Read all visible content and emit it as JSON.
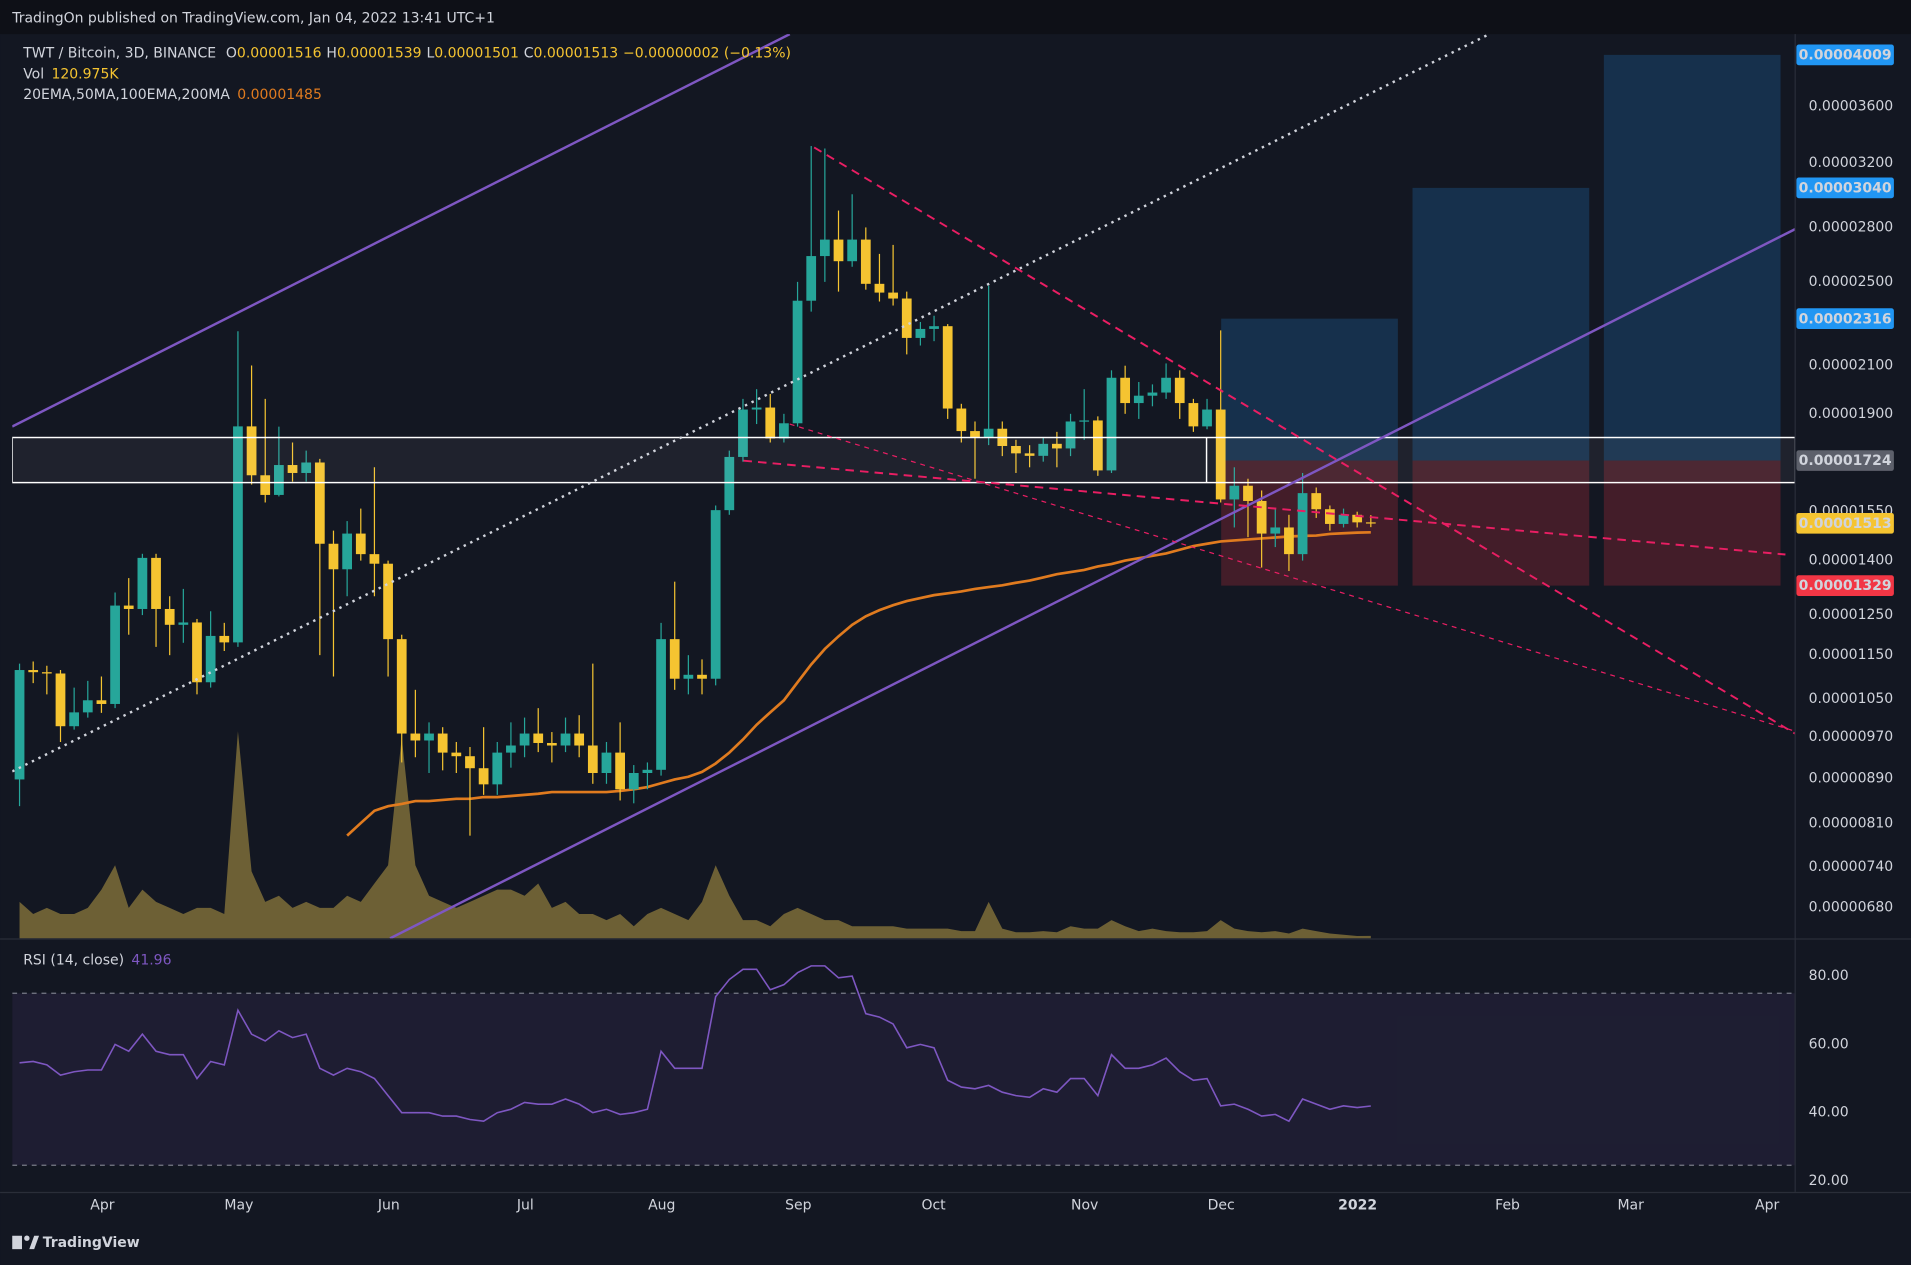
{
  "header": {
    "publisher": "TradingOn published on TradingView.com, Jan 04, 2022 13:41 UTC+1"
  },
  "chart_data": {
    "type": "candlestick",
    "title": "TWT / Bitcoin, 3D, BINANCE",
    "ohlc_letters": [
      "O",
      "H",
      "L",
      "C"
    ],
    "change": "−0.00000002 (−0.13%)",
    "log_scale": true,
    "grid": false,
    "ylim": [
      6.38e-06,
      4.186e-05
    ],
    "yticks": [
      {
        "value": 3.6e-05,
        "label": "0.00003600"
      },
      {
        "value": 3.2e-05,
        "label": "0.00003200"
      },
      {
        "value": 2.8e-05,
        "label": "0.00002800"
      },
      {
        "value": 2.5e-05,
        "label": "0.00002500"
      },
      {
        "value": 2.1e-05,
        "label": "0.00002100"
      },
      {
        "value": 1.9e-05,
        "label": "0.00001900"
      },
      {
        "value": 1.55e-05,
        "label": "0.00001550"
      },
      {
        "value": 1.4e-05,
        "label": "0.00001400"
      },
      {
        "value": 1.25e-05,
        "label": "0.00001250"
      },
      {
        "value": 1.15e-05,
        "label": "0.00001150"
      },
      {
        "value": 1.05e-05,
        "label": "0.00001050"
      },
      {
        "value": 9.7e-06,
        "label": "0.00000970"
      },
      {
        "value": 8.9e-06,
        "label": "0.00000890"
      },
      {
        "value": 8.1e-06,
        "label": "0.00000810"
      },
      {
        "value": 7.4e-06,
        "label": "0.00000740"
      },
      {
        "value": 6.8e-06,
        "label": "0.00000680"
      }
    ],
    "xticks": [
      "Apr",
      "May",
      "Jun",
      "Jul",
      "Aug",
      "Sep",
      "Oct",
      "Nov",
      "Dec",
      "2022",
      "Feb",
      "Mar",
      "Apr"
    ],
    "up_color": "#26a69a",
    "down_color": "#f5c431",
    "open": [
      8.88e-06,
      1.115e-05,
      1.11e-05,
      1.107e-05,
      9.92e-06,
      1.021e-05,
      1.047e-05,
      1.039e-05,
      1.275e-05,
      1.266e-05,
      1.408e-05,
      1.266e-05,
      1.225e-05,
      1.231e-05,
      1.087e-05,
      1.197e-05,
      1.181e-05,
      1.851e-05,
      1.672e-05,
      1.605e-05,
      1.708e-05,
      1.68e-05,
      1.717e-05,
      1.45e-05,
      1.375e-05,
      1.481e-05,
      1.419e-05,
      1.391e-05,
      1.189e-05,
      9.77e-06,
      9.63e-06,
      9.77e-06,
      9.39e-06,
      9.32e-06,
      9.09e-06,
      8.79e-06,
      9.39e-06,
      9.53e-06,
      9.77e-06,
      9.58e-06,
      9.53e-06,
      9.77e-06,
      9.53e-06,
      9e-06,
      9.39e-06,
      8.7e-06,
      9e-06,
      9.06e-06,
      1.189e-05,
      1.095e-05,
      1.104e-05,
      1.095e-05,
      1.555e-05,
      1.737e-05,
      1.917e-05,
      1.925e-05,
      1.805e-05,
      1.863e-05,
      2.404e-05,
      2.638e-05,
      2.73e-05,
      2.61e-05,
      2.73e-05,
      2.49e-05,
      2.445e-05,
      2.415e-05,
      2.225e-05,
      2.267e-05,
      2.28e-05,
      1.921e-05,
      1.833e-05,
      1.81e-05,
      1.842e-05,
      1.777e-05,
      1.75e-05,
      1.741e-05,
      1.785e-05,
      1.768e-05,
      1.87e-05,
      1.874e-05,
      1.689e-05,
      2.048e-05,
      1.943e-05,
      1.973e-05,
      1.986e-05,
      2.048e-05,
      1.943e-05,
      1.851e-05,
      1.917e-05,
      1.59e-05,
      1.636e-05,
      1.585e-05,
      1.481e-05,
      1.5e-05,
      1.419e-05,
      1.611e-05,
      1.558e-05,
      1.511e-05,
      1.54e-05,
      1.516e-05
    ],
    "high": [
      1.13e-05,
      1.135e-05,
      1.125e-05,
      1.115e-05,
      1.075e-05,
      1.09e-05,
      1.1e-05,
      1.31e-05,
      1.35e-05,
      1.42e-05,
      1.42e-05,
      1.3e-05,
      1.32e-05,
      1.24e-05,
      1.26e-05,
      1.23e-05,
      2.256e-05,
      2.101e-05,
      1.96e-05,
      1.85e-05,
      1.79e-05,
      1.76e-05,
      1.73e-05,
      1.49e-05,
      1.52e-05,
      1.56e-05,
      1.7e-05,
      1.4e-05,
      1.2e-05,
      1.07e-05,
      1e-05,
      9.9e-06,
      9.6e-06,
      9.5e-06,
      9.9e-06,
      9.6e-06,
      1e-05,
      1.01e-05,
      1.03e-05,
      9.8e-06,
      1.01e-05,
      1.015e-05,
      1.13e-05,
      9.6e-06,
      1e-05,
      9.15e-06,
      9.2e-06,
      1.23e-05,
      1.34e-05,
      1.15e-05,
      1.14e-05,
      1.57e-05,
      1.76e-05,
      1.96e-05,
      2e-05,
      1.98e-05,
      1.9e-05,
      2.5e-05,
      3.317e-05,
      3.3e-05,
      2.9e-05,
      3e-05,
      2.8e-05,
      2.65e-05,
      2.7e-05,
      2.45e-05,
      2.3e-05,
      2.33e-05,
      2.29e-05,
      1.94e-05,
      1.87e-05,
      2.48e-05,
      1.87e-05,
      1.8e-05,
      1.78e-05,
      1.81e-05,
      1.83e-05,
      1.9e-05,
      2e-05,
      1.89e-05,
      2.08e-05,
      2.1e-05,
      2.03e-05,
      2.02e-05,
      2.11e-05,
      2.08e-05,
      1.96e-05,
      1.96e-05,
      2.26e-05,
      1.7e-05,
      1.66e-05,
      1.62e-05,
      1.56e-05,
      1.54e-05,
      1.68e-05,
      1.63e-05,
      1.57e-05,
      1.56e-05,
      1.55e-05,
      1.539e-05
    ],
    "low": [
      8.4e-06,
      1.085e-05,
      1.06e-05,
      9.6e-06,
      9.85e-06,
      1.01e-05,
      1.02e-05,
      1.03e-05,
      1.2e-05,
      1.25e-05,
      1.17e-05,
      1.15e-05,
      1.18e-05,
      1.06e-05,
      1.075e-05,
      1.16e-05,
      1.17e-05,
      1.64e-05,
      1.58e-05,
      1.6e-05,
      1.65e-05,
      1.65e-05,
      1.15e-05,
      1.1e-05,
      1.3e-05,
      1.4e-05,
      1.3e-05,
      1.1e-05,
      9.2e-06,
      9.3e-06,
      9e-06,
      9.05e-06,
      9e-06,
      7.9e-06,
      8.6e-06,
      8.6e-06,
      9.1e-06,
      9.3e-06,
      9.4e-06,
      9.2e-06,
      9.4e-06,
      9.3e-06,
      8.8e-06,
      8.8e-06,
      8.5e-06,
      8.45e-06,
      8.7e-06,
      8.95e-06,
      1.07e-05,
      1.06e-05,
      1.06e-05,
      1.08e-05,
      1.54e-05,
      1.72e-05,
      1.86e-05,
      1.79e-05,
      1.79e-05,
      1.85e-05,
      2.35e-05,
      2.5e-05,
      2.45e-05,
      2.58e-05,
      2.46e-05,
      2.4e-05,
      2.38e-05,
      2.15e-05,
      2.19e-05,
      2.21e-05,
      1.88e-05,
      1.79e-05,
      1.66e-05,
      1.78e-05,
      1.74e-05,
      1.68e-05,
      1.7e-05,
      1.72e-05,
      1.7e-05,
      1.74e-05,
      1.8e-05,
      1.67e-05,
      1.68e-05,
      1.9e-05,
      1.88e-05,
      1.93e-05,
      1.96e-05,
      1.88e-05,
      1.83e-05,
      1.84e-05,
      1.58e-05,
      1.5e-05,
      1.47e-05,
      1.38e-05,
      1.44e-05,
      1.37e-05,
      1.4e-05,
      1.53e-05,
      1.49e-05,
      1.5e-05,
      1.5e-05,
      1.501e-05
    ],
    "close": [
      1.115e-05,
      1.11e-05,
      1.107e-05,
      9.92e-06,
      1.021e-05,
      1.047e-05,
      1.039e-05,
      1.275e-05,
      1.266e-05,
      1.408e-05,
      1.266e-05,
      1.225e-05,
      1.231e-05,
      1.087e-05,
      1.197e-05,
      1.181e-05,
      1.851e-05,
      1.672e-05,
      1.605e-05,
      1.708e-05,
      1.68e-05,
      1.717e-05,
      1.45e-05,
      1.375e-05,
      1.481e-05,
      1.419e-05,
      1.391e-05,
      1.189e-05,
      9.77e-06,
      9.63e-06,
      9.77e-06,
      9.39e-06,
      9.32e-06,
      9.09e-06,
      8.79e-06,
      9.39e-06,
      9.53e-06,
      9.77e-06,
      9.58e-06,
      9.53e-06,
      9.77e-06,
      9.53e-06,
      9e-06,
      9.39e-06,
      8.7e-06,
      9e-06,
      9.06e-06,
      1.189e-05,
      1.095e-05,
      1.104e-05,
      1.095e-05,
      1.555e-05,
      1.737e-05,
      1.917e-05,
      1.925e-05,
      1.805e-05,
      1.863e-05,
      2.404e-05,
      2.638e-05,
      2.73e-05,
      2.61e-05,
      2.73e-05,
      2.49e-05,
      2.445e-05,
      2.415e-05,
      2.225e-05,
      2.267e-05,
      2.28e-05,
      1.921e-05,
      1.833e-05,
      1.81e-05,
      1.842e-05,
      1.777e-05,
      1.75e-05,
      1.741e-05,
      1.785e-05,
      1.768e-05,
      1.87e-05,
      1.874e-05,
      1.689e-05,
      2.048e-05,
      1.943e-05,
      1.973e-05,
      1.986e-05,
      2.048e-05,
      1.943e-05,
      1.851e-05,
      1.917e-05,
      1.59e-05,
      1.636e-05,
      1.585e-05,
      1.481e-05,
      1.5e-05,
      1.419e-05,
      1.611e-05,
      1.558e-05,
      1.511e-05,
      1.54e-05,
      1.516e-05,
      1.513e-05
    ],
    "volume": {
      "name": "Vol",
      "color": "#8c7a3c",
      "last_value_label": "120.975K",
      "values": [
        1800000,
        1200000,
        1500000,
        1200000,
        1200000,
        1500000,
        2400000,
        3600000,
        1500000,
        2400000,
        1800000,
        1500000,
        1200000,
        1500000,
        1500000,
        1200000,
        10200000,
        3300000,
        1800000,
        2100000,
        1500000,
        1800000,
        1500000,
        1500000,
        2100000,
        1800000,
        2700000,
        3600000,
        9900000,
        3600000,
        2100000,
        1800000,
        1500000,
        1800000,
        2100000,
        2400000,
        2400000,
        2100000,
        2700000,
        1500000,
        1800000,
        1200000,
        1200000,
        900000,
        1200000,
        600000,
        1200000,
        1500000,
        1200000,
        900000,
        1800000,
        3600000,
        2100000,
        900000,
        900000,
        600000,
        1200000,
        1500000,
        1200000,
        900000,
        900000,
        600000,
        600000,
        600000,
        600000,
        480000,
        480000,
        480000,
        480000,
        360000,
        360000,
        1800000,
        480000,
        300000,
        300000,
        360000,
        300000,
        600000,
        480000,
        480000,
        900000,
        600000,
        360000,
        480000,
        360000,
        300000,
        300000,
        360000,
        900000,
        480000,
        360000,
        300000,
        360000,
        240000,
        480000,
        360000,
        240000,
        180000,
        120000,
        120975
      ]
    },
    "moving_average": {
      "name": "20EMA,50MA,100EMA,200MA",
      "color": "#e07b1f",
      "values": [
        null,
        null,
        null,
        null,
        null,
        null,
        null,
        null,
        null,
        null,
        null,
        null,
        null,
        null,
        null,
        null,
        null,
        null,
        null,
        null,
        null,
        null,
        null,
        null,
        7.9e-06,
        8.11e-06,
        8.32e-06,
        8.4e-06,
        8.44e-06,
        8.49e-06,
        8.49e-06,
        8.51e-06,
        8.53e-06,
        8.53e-06,
        8.56e-06,
        8.56e-06,
        8.58e-06,
        8.6e-06,
        8.62e-06,
        8.65e-06,
        8.65e-06,
        8.65e-06,
        8.65e-06,
        8.65e-06,
        8.67e-06,
        8.7e-06,
        8.74e-06,
        8.81e-06,
        8.88e-06,
        8.93e-06,
        9.02e-06,
        9.18e-06,
        9.39e-06,
        9.65e-06,
        9.95e-06,
        1.021e-05,
        1.047e-05,
        1.087e-05,
        1.128e-05,
        1.165e-05,
        1.196e-05,
        1.225e-05,
        1.247e-05,
        1.263e-05,
        1.276e-05,
        1.287e-05,
        1.295e-05,
        1.303e-05,
        1.308e-05,
        1.313e-05,
        1.32e-05,
        1.325e-05,
        1.33e-05,
        1.337e-05,
        1.343e-05,
        1.352e-05,
        1.361e-05,
        1.367e-05,
        1.373e-05,
        1.383e-05,
        1.39e-05,
        1.4e-05,
        1.407e-05,
        1.414e-05,
        1.421e-05,
        1.432e-05,
        1.443e-05,
        1.45e-05,
        1.457e-05,
        1.46e-05,
        1.463e-05,
        1.466e-05,
        1.469e-05,
        1.472e-05,
        1.474e-05,
        1.475e-05,
        1.48e-05,
        1.482e-05,
        1.484e-05,
        1.485e-05
      ]
    },
    "price_tags": [
      {
        "value": 4.009e-05,
        "color": "#2196f3"
      },
      {
        "value": 3.04e-05,
        "label": "0.00003040",
        "color": "#2196f3"
      },
      {
        "value": 2.316e-05,
        "color": "#2196f3"
      },
      {
        "value": 1.724e-05,
        "color": "#5d606b"
      },
      {
        "value": 1.513e-05,
        "color": "#f5c431"
      },
      {
        "value": 1.329e-05,
        "color": "#f23645"
      }
    ],
    "rsi": {
      "name": "RSI (14, close)",
      "color": "#7e57c2",
      "ylim": [
        16.8,
        90.7
      ],
      "bands": [
        75,
        24.6
      ],
      "yticks": [
        {
          "value": 20,
          "label": "20.00"
        },
        {
          "value": 40,
          "label": "40.00"
        },
        {
          "value": 60,
          "label": "60.00"
        },
        {
          "value": 80,
          "label": "80.00"
        }
      ],
      "values": [
        54.6,
        55,
        54,
        51,
        52,
        52.5,
        52.5,
        60,
        58,
        63,
        58,
        57,
        57,
        50,
        55,
        54,
        70,
        63,
        61,
        64,
        62,
        63,
        53,
        51,
        53,
        52,
        50,
        45,
        40,
        40,
        40,
        39,
        39,
        38,
        37.5,
        40,
        41,
        43,
        42.5,
        42.5,
        44,
        42.5,
        40,
        41,
        39.5,
        40,
        41,
        58,
        53,
        53,
        53,
        74,
        79,
        82,
        82,
        76,
        77.5,
        81,
        83,
        83,
        79.5,
        80,
        69,
        68,
        66,
        59,
        60,
        59,
        49.5,
        47.5,
        47,
        48,
        46,
        45,
        44.5,
        47,
        46,
        50,
        50,
        45,
        57,
        53,
        53,
        54,
        56,
        52,
        49.5,
        50,
        42,
        42.5,
        41,
        39,
        39.5,
        37.5,
        44,
        42.5,
        41,
        42,
        41.5,
        41.96
      ]
    }
  },
  "footer": {
    "brand": "TradingView"
  }
}
